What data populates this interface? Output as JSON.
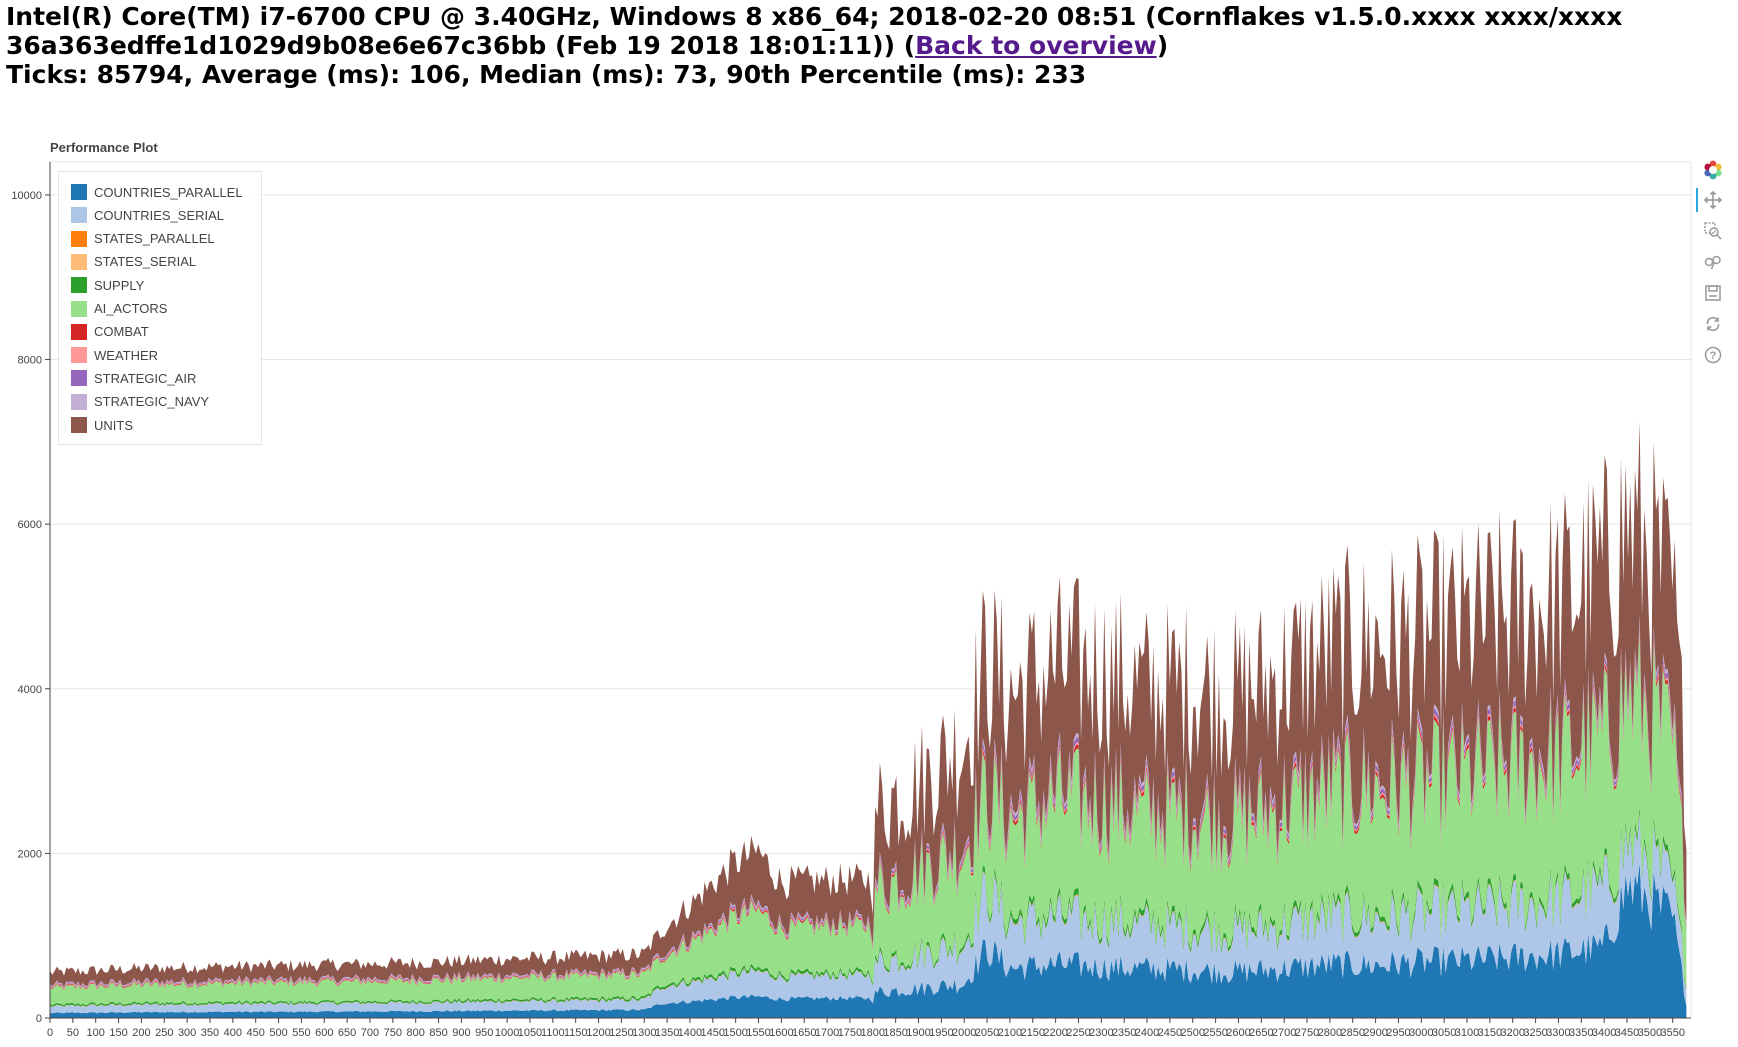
{
  "header": {
    "line1": "Intel(R) Core(TM) i7-6700 CPU @ 3.40GHz, Windows 8 x86_64; 2018-02-20 08:51 (Cornflakes v1.5.0.xxxx xxxx/xxxx",
    "line2_prefix": "36a363edffe1d1029d9b08e6e67c36bb (Feb 19 2018 18:01:11)) (",
    "link_text": "Back to overview",
    "line2_suffix": ")",
    "line3": "Ticks: 85794, Average (ms): 106, Median (ms): 73, 90th Percentile (ms): 233"
  },
  "toolbar": {
    "tools": [
      "bokeh-logo-icon",
      "pan-icon",
      "box-zoom-icon",
      "wheel-zoom-icon",
      "save-icon",
      "reset-icon",
      "help-icon"
    ]
  },
  "chart_data": {
    "type": "area",
    "title": "Performance Plot",
    "xlabel": "",
    "ylabel": "",
    "xlim": [
      0,
      3590
    ],
    "ylim": [
      0,
      10400
    ],
    "grid": true,
    "legend_position": "top-left",
    "x_ticks": [
      0,
      50,
      100,
      150,
      200,
      250,
      300,
      350,
      400,
      450,
      500,
      550,
      600,
      650,
      700,
      750,
      800,
      850,
      900,
      950,
      1000,
      1050,
      1100,
      1150,
      1200,
      1250,
      1300,
      1350,
      1400,
      1450,
      1500,
      1550,
      1600,
      1650,
      1700,
      1750,
      1800,
      1850,
      1900,
      1950,
      2000,
      2050,
      2100,
      2150,
      2200,
      2250,
      2300,
      2350,
      2400,
      2450,
      2500,
      2550,
      2600,
      2650,
      2700,
      2750,
      2800,
      2850,
      2900,
      2950,
      3000,
      3050,
      3100,
      3150,
      3200,
      3250,
      3300,
      3350,
      3400,
      3450,
      3500,
      3550
    ],
    "y_ticks": [
      0,
      2000,
      4000,
      6000,
      8000,
      10000
    ],
    "x": [
      0,
      100,
      200,
      300,
      400,
      500,
      600,
      700,
      800,
      900,
      1000,
      1100,
      1200,
      1300,
      1340,
      1400,
      1500,
      1550,
      1600,
      1700,
      1800,
      1810,
      1900,
      2000,
      2050,
      2100,
      2200,
      2300,
      2400,
      2500,
      2600,
      2700,
      2800,
      2900,
      3000,
      3100,
      3200,
      3300,
      3400,
      3450,
      3500,
      3550,
      3580
    ],
    "series": [
      {
        "name": "COUNTRIES_PARALLEL",
        "color": "#1f77b4",
        "values": [
          60,
          65,
          70,
          72,
          75,
          75,
          78,
          80,
          82,
          85,
          90,
          92,
          95,
          100,
          180,
          200,
          250,
          260,
          230,
          240,
          240,
          320,
          360,
          420,
          850,
          600,
          650,
          620,
          600,
          580,
          560,
          600,
          650,
          640,
          680,
          700,
          730,
          780,
          860,
          1600,
          1450,
          1200,
          200
        ]
      },
      {
        "name": "COUNTRIES_SERIAL",
        "color": "#aec7e8",
        "values": [
          80,
          85,
          90,
          92,
          95,
          95,
          98,
          100,
          102,
          105,
          110,
          112,
          115,
          120,
          200,
          230,
          280,
          300,
          260,
          270,
          280,
          360,
          400,
          480,
          700,
          550,
          560,
          540,
          520,
          500,
          480,
          520,
          560,
          560,
          580,
          600,
          620,
          650,
          700,
          500,
          480,
          400,
          250
        ]
      },
      {
        "name": "STATES_PARALLEL",
        "color": "#ff7f0e",
        "values": [
          2,
          2,
          2,
          2,
          2,
          2,
          2,
          2,
          2,
          2,
          2,
          2,
          2,
          2,
          3,
          3,
          3,
          3,
          3,
          3,
          3,
          4,
          4,
          4,
          5,
          5,
          5,
          5,
          5,
          5,
          5,
          5,
          5,
          5,
          5,
          5,
          5,
          5,
          5,
          5,
          5,
          5,
          5
        ]
      },
      {
        "name": "STATES_SERIAL",
        "color": "#ffbb78",
        "values": [
          2,
          2,
          2,
          2,
          2,
          2,
          2,
          2,
          2,
          2,
          2,
          2,
          2,
          2,
          3,
          3,
          3,
          3,
          3,
          3,
          3,
          4,
          4,
          4,
          5,
          5,
          5,
          5,
          5,
          5,
          5,
          5,
          5,
          5,
          5,
          5,
          5,
          5,
          5,
          5,
          5,
          5,
          5
        ]
      },
      {
        "name": "SUPPLY",
        "color": "#2ca02c",
        "values": [
          20,
          20,
          20,
          20,
          20,
          20,
          20,
          20,
          20,
          22,
          22,
          22,
          24,
          24,
          30,
          30,
          35,
          35,
          32,
          32,
          32,
          40,
          40,
          45,
          60,
          60,
          60,
          60,
          60,
          60,
          60,
          60,
          60,
          60,
          60,
          60,
          60,
          60,
          60,
          70,
          70,
          60,
          40
        ]
      },
      {
        "name": "AI_ACTORS",
        "color": "#98df8a",
        "values": [
          200,
          210,
          220,
          225,
          230,
          232,
          235,
          240,
          245,
          250,
          260,
          265,
          270,
          280,
          330,
          450,
          650,
          700,
          550,
          560,
          560,
          850,
          950,
          1100,
          1100,
          1150,
          1350,
          1350,
          1250,
          1300,
          1250,
          1350,
          1450,
          1500,
          1500,
          1550,
          1600,
          1650,
          1750,
          1700,
          1700,
          1600,
          1000
        ]
      },
      {
        "name": "COMBAT",
        "color": "#d62728",
        "values": [
          10,
          10,
          10,
          10,
          10,
          10,
          10,
          10,
          10,
          10,
          10,
          10,
          10,
          10,
          15,
          15,
          20,
          20,
          18,
          18,
          18,
          25,
          25,
          30,
          40,
          40,
          40,
          40,
          40,
          40,
          40,
          40,
          40,
          40,
          40,
          40,
          40,
          40,
          40,
          40,
          40,
          40,
          30
        ]
      },
      {
        "name": "WEATHER",
        "color": "#ff9896",
        "values": [
          8,
          8,
          8,
          8,
          8,
          8,
          8,
          8,
          8,
          8,
          8,
          8,
          8,
          8,
          10,
          10,
          12,
          12,
          10,
          10,
          10,
          15,
          15,
          18,
          20,
          20,
          20,
          20,
          20,
          20,
          20,
          20,
          20,
          20,
          20,
          20,
          20,
          20,
          20,
          20,
          20,
          20,
          15
        ]
      },
      {
        "name": "STRATEGIC_AIR",
        "color": "#9467bd",
        "values": [
          10,
          10,
          10,
          10,
          10,
          10,
          10,
          10,
          10,
          10,
          10,
          10,
          10,
          10,
          15,
          15,
          20,
          20,
          18,
          18,
          18,
          30,
          30,
          40,
          50,
          50,
          50,
          50,
          50,
          50,
          50,
          50,
          50,
          50,
          50,
          50,
          50,
          50,
          50,
          50,
          50,
          50,
          40
        ]
      },
      {
        "name": "STRATEGIC_NAVY",
        "color": "#c5b0d5",
        "values": [
          10,
          10,
          10,
          10,
          10,
          10,
          10,
          10,
          10,
          10,
          10,
          10,
          10,
          10,
          15,
          15,
          20,
          20,
          18,
          18,
          18,
          25,
          25,
          30,
          40,
          40,
          40,
          40,
          40,
          40,
          40,
          40,
          40,
          40,
          40,
          40,
          40,
          40,
          40,
          40,
          40,
          40,
          30
        ]
      },
      {
        "name": "UNITS",
        "color": "#8c564b",
        "values": [
          150,
          155,
          160,
          165,
          165,
          170,
          175,
          175,
          180,
          185,
          195,
          200,
          205,
          210,
          280,
          400,
          600,
          650,
          500,
          500,
          500,
          900,
          1000,
          1200,
          1500,
          1400,
          1500,
          1500,
          1400,
          1450,
          1400,
          1500,
          1600,
          1650,
          1650,
          1700,
          1750,
          1800,
          1900,
          2000,
          1800,
          1700,
          1200
        ]
      }
    ]
  }
}
